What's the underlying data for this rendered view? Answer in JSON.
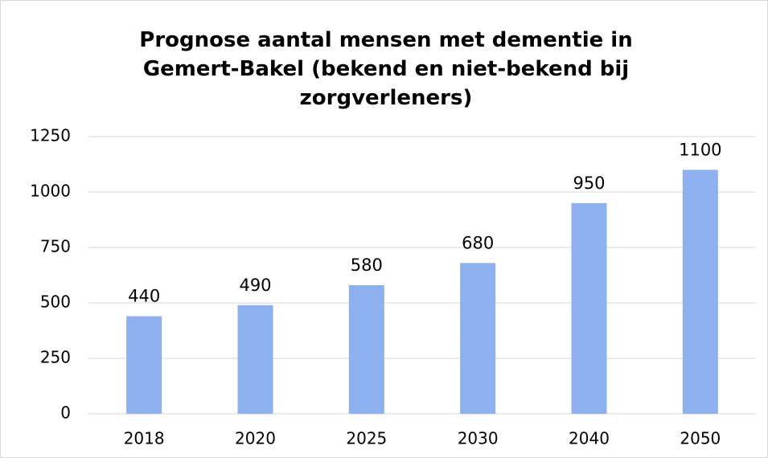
{
  "chart_data": {
    "type": "bar",
    "title": "Prognose aantal mensen met dementie in Gemert-Bakel (bekend en niet-bekend bij zorgverleners)",
    "categories": [
      "2018",
      "2020",
      "2025",
      "2030",
      "2040",
      "2050"
    ],
    "values": [
      440,
      490,
      580,
      680,
      950,
      1100
    ],
    "color": "#8eb0ee",
    "ylim": [
      0,
      1250
    ],
    "yticks": [
      0,
      250,
      500,
      750,
      1000,
      1250
    ],
    "grid": true
  }
}
